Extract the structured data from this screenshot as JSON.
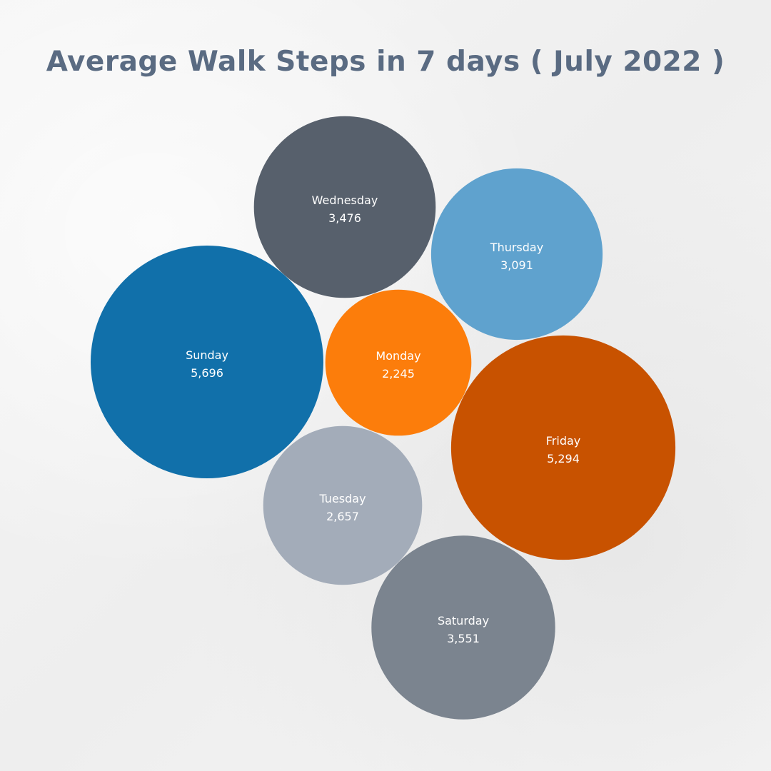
{
  "chart_data": {
    "type": "bubble",
    "title": "Average Walk Steps in 7 days ( July 2022 )",
    "points": [
      {
        "name": "Sunday",
        "value": 5696,
        "display": "5,696",
        "color": "#1170aa"
      },
      {
        "name": "Monday",
        "value": 2245,
        "display": "2,245",
        "color": "#fc7d0b"
      },
      {
        "name": "Tuesday",
        "value": 2657,
        "display": "2,657",
        "color": "#a3acb9"
      },
      {
        "name": "Wednesday",
        "value": 3476,
        "display": "3,476",
        "color": "#57606c"
      },
      {
        "name": "Thursday",
        "value": 3091,
        "display": "3,091",
        "color": "#5fa2ce"
      },
      {
        "name": "Friday",
        "value": 5294,
        "display": "5,294",
        "color": "#c85200"
      },
      {
        "name": "Saturday",
        "value": 3551,
        "display": "3,551",
        "color": "#7b848f"
      }
    ]
  }
}
